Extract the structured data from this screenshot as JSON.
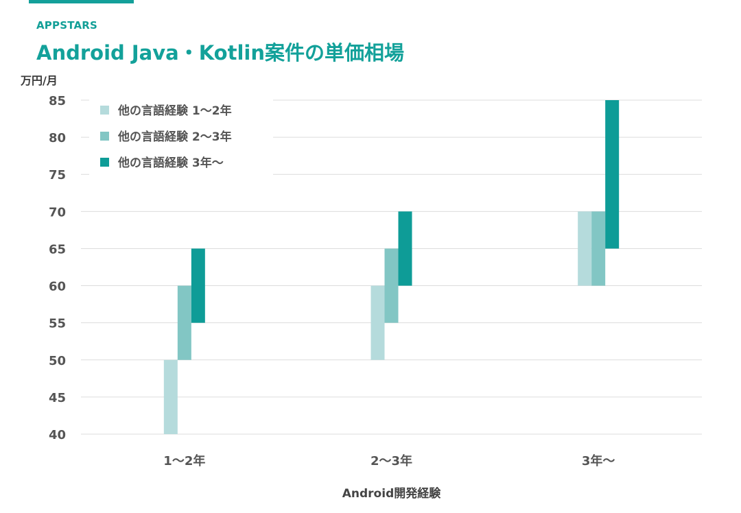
{
  "header": {
    "brand": "APPSTARS",
    "title": "Android Java・Kotlin案件の単価相場"
  },
  "chart_data": {
    "type": "bar",
    "subtype": "floating-range",
    "title": "Android Java・Kotlin案件の単価相場",
    "ylabel": "万円/月",
    "xlabel": "Android開発経験",
    "ylim": [
      40,
      85
    ],
    "yticks": [
      40,
      45,
      50,
      55,
      60,
      65,
      70,
      75,
      80,
      85
    ],
    "grid": true,
    "legend_position": "top-left",
    "categories": [
      "1〜2年",
      "2〜3年",
      "3年〜"
    ],
    "series": [
      {
        "name": "他の言語経験 1〜2年",
        "color": "#b5dbdc",
        "ranges": [
          [
            40,
            50
          ],
          [
            50,
            60
          ],
          [
            60,
            70
          ]
        ]
      },
      {
        "name": "他の言語経験 2〜3年",
        "color": "#82c6c4",
        "ranges": [
          [
            50,
            60
          ],
          [
            55,
            65
          ],
          [
            60,
            70
          ]
        ]
      },
      {
        "name": "他の言語経験 3年〜",
        "color": "#0e9c97",
        "ranges": [
          [
            55,
            65
          ],
          [
            60,
            70
          ],
          [
            65,
            85
          ]
        ]
      }
    ]
  }
}
